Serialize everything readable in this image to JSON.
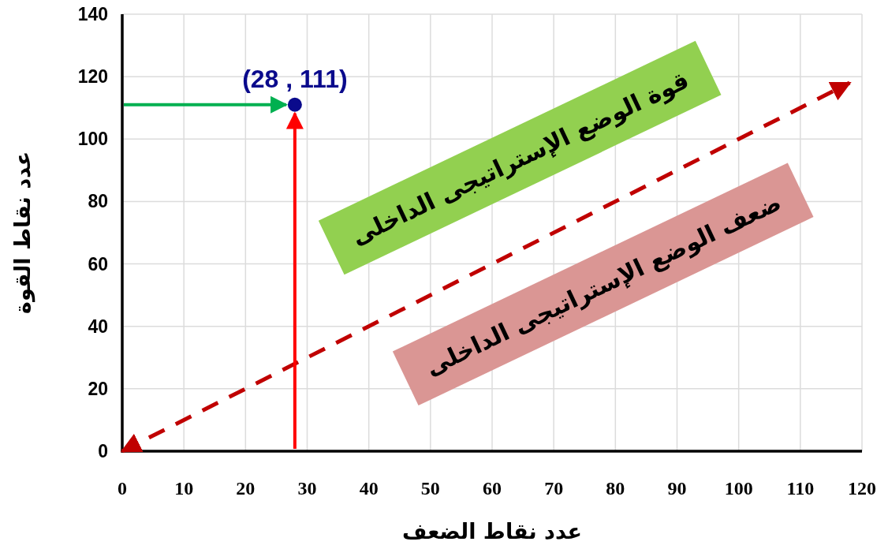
{
  "chart_data": {
    "type": "scatter",
    "xlabel": "عدد نقاط الضعف",
    "ylabel": "عدد نقاط القوة",
    "xlim": [
      0,
      120
    ],
    "ylim": [
      0,
      140
    ],
    "xticks": [
      0,
      10,
      20,
      30,
      40,
      50,
      60,
      70,
      80,
      90,
      100,
      110,
      120
    ],
    "yticks": [
      0,
      20,
      40,
      60,
      80,
      100,
      120,
      140
    ],
    "grid": true,
    "series": [
      {
        "x": [
          28
        ],
        "values": [
          111
        ],
        "color": "#0a0a8c",
        "marker": "circle"
      },
      {
        "type": "line",
        "x": [
          0,
          118
        ],
        "values": [
          0,
          118
        ],
        "color": "#c00000",
        "line_style": "dashed",
        "marker": "none"
      }
    ],
    "annotations": [
      {
        "text": "(28 , 111)",
        "x": 28,
        "y": 111
      },
      "قوة الوضع الإستراتيجى الداخلى",
      "ضعف الوضع الإستراتيجى الداخلى"
    ]
  }
}
